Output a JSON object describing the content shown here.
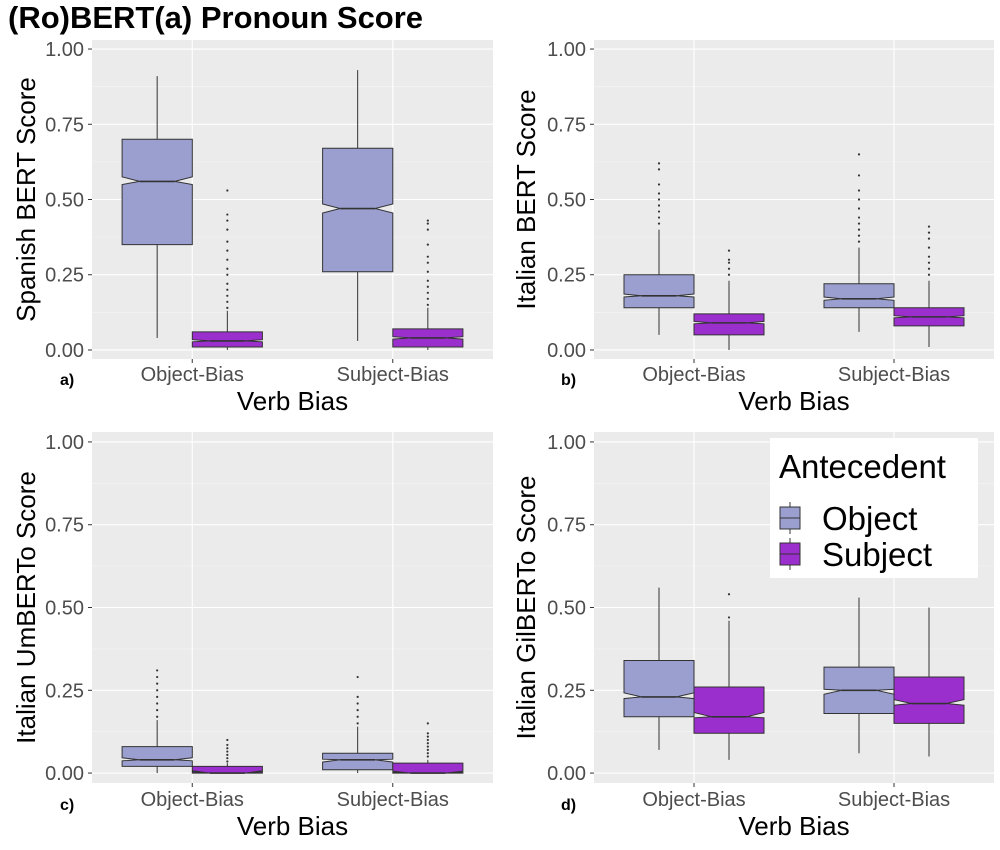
{
  "figure": {
    "title": "(Ro)BERT(a) Pronoun Score"
  },
  "colors": {
    "object": "#9b9fd0",
    "subject": "#9b2fcd",
    "outline": "#333333",
    "panel": "#ebebeb"
  },
  "legend": {
    "title": "Antecedent",
    "items": [
      {
        "label": "Object",
        "color": "#9b9fd0"
      },
      {
        "label": "Subject",
        "color": "#9b2fcd"
      }
    ]
  },
  "chart_data": [
    {
      "type": "boxplot",
      "tag": "a)",
      "ylabel": "Spanish BERT Score",
      "xlabel": "Verb Bias",
      "ylim": [
        -0.03,
        1.03
      ],
      "yticks": [
        "0.00",
        "0.25",
        "0.50",
        "0.75",
        "1.00"
      ],
      "categories": [
        "Object-Bias",
        "Subject-Bias"
      ],
      "series": [
        {
          "name": "Object",
          "boxes": [
            {
              "min": 0.04,
              "q1": 0.35,
              "median": 0.56,
              "q3": 0.7,
              "max": 0.91,
              "notch": [
                0.55,
                0.575
              ],
              "outliers": []
            },
            {
              "min": 0.03,
              "q1": 0.26,
              "median": 0.47,
              "q3": 0.67,
              "max": 0.93,
              "notch": [
                0.455,
                0.485
              ],
              "outliers": []
            }
          ]
        },
        {
          "name": "Subject",
          "boxes": [
            {
              "min": 0.0,
              "q1": 0.01,
              "median": 0.03,
              "q3": 0.06,
              "max": 0.13,
              "notch": [
                0.027,
                0.034
              ],
              "outliers": [
                0.14,
                0.16,
                0.18,
                0.2,
                0.22,
                0.25,
                0.27,
                0.3,
                0.33,
                0.36,
                0.4,
                0.43,
                0.45,
                0.53
              ]
            },
            {
              "min": 0.0,
              "q1": 0.01,
              "median": 0.04,
              "q3": 0.07,
              "max": 0.14,
              "notch": [
                0.036,
                0.044
              ],
              "outliers": [
                0.15,
                0.17,
                0.19,
                0.21,
                0.23,
                0.26,
                0.29,
                0.31,
                0.35,
                0.4,
                0.42,
                0.43
              ]
            }
          ]
        }
      ]
    },
    {
      "type": "boxplot",
      "tag": "b)",
      "ylabel": "Italian BERT Score",
      "xlabel": "Verb Bias",
      "ylim": [
        -0.03,
        1.03
      ],
      "yticks": [
        "0.00",
        "0.25",
        "0.50",
        "0.75",
        "1.00"
      ],
      "categories": [
        "Object-Bias",
        "Subject-Bias"
      ],
      "series": [
        {
          "name": "Object",
          "boxes": [
            {
              "min": 0.05,
              "q1": 0.14,
              "median": 0.18,
              "q3": 0.25,
              "max": 0.4,
              "notch": [
                0.176,
                0.186
              ],
              "outliers": [
                0.42,
                0.44,
                0.46,
                0.48,
                0.5,
                0.52,
                0.55,
                0.6,
                0.62
              ]
            },
            {
              "min": 0.06,
              "q1": 0.14,
              "median": 0.17,
              "q3": 0.22,
              "max": 0.34,
              "notch": [
                0.165,
                0.176
              ],
              "outliers": [
                0.36,
                0.38,
                0.4,
                0.42,
                0.44,
                0.47,
                0.5,
                0.53,
                0.58,
                0.65
              ]
            }
          ]
        },
        {
          "name": "Subject",
          "boxes": [
            {
              "min": 0.0,
              "q1": 0.05,
              "median": 0.09,
              "q3": 0.12,
              "max": 0.23,
              "notch": [
                0.087,
                0.095
              ],
              "outliers": [
                0.25,
                0.27,
                0.29,
                0.3,
                0.33
              ]
            },
            {
              "min": 0.01,
              "q1": 0.08,
              "median": 0.11,
              "q3": 0.14,
              "max": 0.23,
              "notch": [
                0.107,
                0.114
              ],
              "outliers": [
                0.25,
                0.27,
                0.29,
                0.31,
                0.34,
                0.37,
                0.39,
                0.41
              ]
            }
          ]
        }
      ]
    },
    {
      "type": "boxplot",
      "tag": "c)",
      "ylabel": "Italian UmBERTo Score",
      "xlabel": "Verb Bias",
      "ylim": [
        -0.03,
        1.03
      ],
      "yticks": [
        "0.00",
        "0.25",
        "0.50",
        "0.75",
        "1.00"
      ],
      "categories": [
        "Object-Bias",
        "Subject-Bias"
      ],
      "series": [
        {
          "name": "Object",
          "boxes": [
            {
              "min": 0.0,
              "q1": 0.02,
              "median": 0.04,
              "q3": 0.08,
              "max": 0.16,
              "notch": [
                0.037,
                0.046
              ],
              "outliers": [
                0.17,
                0.19,
                0.21,
                0.23,
                0.25,
                0.27,
                0.29,
                0.31
              ]
            },
            {
              "min": 0.0,
              "q1": 0.01,
              "median": 0.04,
              "q3": 0.06,
              "max": 0.14,
              "notch": [
                0.033,
                0.042
              ],
              "outliers": [
                0.15,
                0.17,
                0.19,
                0.21,
                0.23,
                0.29
              ]
            }
          ]
        },
        {
          "name": "Subject",
          "boxes": [
            {
              "min": 0.0,
              "q1": 0.0,
              "median": 0.0,
              "q3": 0.02,
              "max": 0.03,
              "notch": [
                0.004,
                0.007
              ],
              "outliers": [
                0.035,
                0.045,
                0.055,
                0.065,
                0.075,
                0.085,
                0.1
              ]
            },
            {
              "min": 0.0,
              "q1": 0.0,
              "median": 0.0,
              "q3": 0.03,
              "max": 0.04,
              "notch": [
                0.003,
                0.006
              ],
              "outliers": [
                0.05,
                0.06,
                0.07,
                0.08,
                0.09,
                0.1,
                0.11,
                0.12,
                0.15
              ]
            }
          ]
        }
      ]
    },
    {
      "type": "boxplot",
      "tag": "d)",
      "ylabel": "Italian GilBERTo Score",
      "xlabel": "Verb Bias",
      "ylim": [
        -0.03,
        1.03
      ],
      "yticks": [
        "0.00",
        "0.25",
        "0.50",
        "0.75",
        "1.00"
      ],
      "categories": [
        "Object-Bias",
        "Subject-Bias"
      ],
      "series": [
        {
          "name": "Object",
          "boxes": [
            {
              "min": 0.07,
              "q1": 0.17,
              "median": 0.23,
              "q3": 0.34,
              "max": 0.56,
              "notch": [
                0.225,
                0.242
              ],
              "outliers": []
            },
            {
              "min": 0.06,
              "q1": 0.18,
              "median": 0.25,
              "q3": 0.32,
              "max": 0.53,
              "notch": [
                0.238,
                0.253
              ],
              "outliers": []
            }
          ]
        },
        {
          "name": "Subject",
          "boxes": [
            {
              "min": 0.04,
              "q1": 0.12,
              "median": 0.17,
              "q3": 0.26,
              "max": 0.46,
              "notch": [
                0.167,
                0.183
              ],
              "outliers": [
                0.47,
                0.54
              ]
            },
            {
              "min": 0.05,
              "q1": 0.15,
              "median": 0.21,
              "q3": 0.29,
              "max": 0.5,
              "notch": [
                0.205,
                0.222
              ],
              "outliers": []
            }
          ]
        }
      ]
    }
  ]
}
